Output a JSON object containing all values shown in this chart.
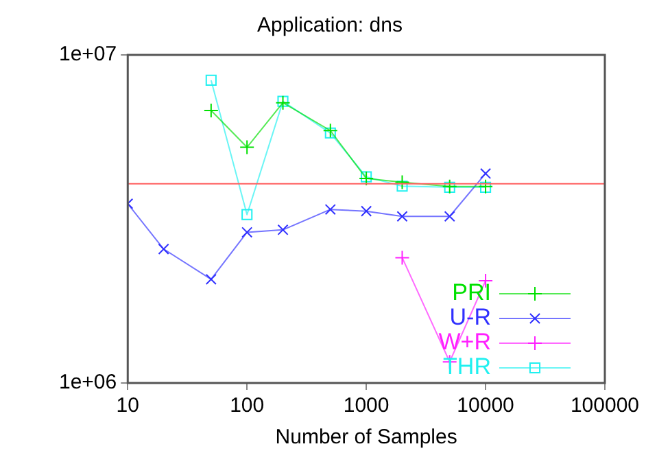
{
  "chart_data": {
    "type": "line",
    "title": "Application: dns",
    "xlabel": "Number of Samples",
    "log": "xy",
    "xlim": [
      10,
      100000
    ],
    "xticks": [
      10,
      100,
      1000,
      10000,
      100000
    ],
    "ylim": [
      1000000,
      10000000
    ],
    "yticks": [
      {
        "value": 1000000,
        "label": "1e+06"
      },
      {
        "value": 10000000,
        "label": "1e+07"
      }
    ],
    "grid": false,
    "legend": "bottom right",
    "series": [
      {
        "name": "PRI",
        "color": "#00e000",
        "marker": "cross",
        "x": [
          50,
          100,
          200,
          500,
          1000,
          2000,
          5000,
          10000
        ],
        "values": [
          6770000,
          5230000,
          7150000,
          5880000,
          4200000,
          4090000,
          3970000,
          3970000
        ]
      },
      {
        "name": "U-R",
        "color": "#3030ff",
        "marker": "x",
        "x": [
          10,
          20,
          50,
          100,
          200,
          500,
          1000,
          2000,
          5000,
          10000
        ],
        "values": [
          3520000,
          2560000,
          2070000,
          2880000,
          2930000,
          3380000,
          3340000,
          3220000,
          3220000,
          4350000
        ]
      },
      {
        "name": "W+R",
        "color": "#ff20ff",
        "marker": "cross",
        "x": [
          2000,
          5000,
          10000
        ],
        "values": [
          2410000,
          1160000,
          2050000
        ]
      },
      {
        "name": "THR",
        "color": "#20f0f0",
        "marker": "square",
        "x": [
          50,
          100,
          200,
          500,
          1000,
          2000,
          5000,
          10000
        ],
        "values": [
          8370000,
          3260000,
          7220000,
          5780000,
          4250000,
          3980000,
          3950000,
          3950000
        ]
      }
    ],
    "ref_lines": [
      {
        "axis": "y",
        "value": 4050000,
        "color": "#ff6060"
      }
    ]
  }
}
